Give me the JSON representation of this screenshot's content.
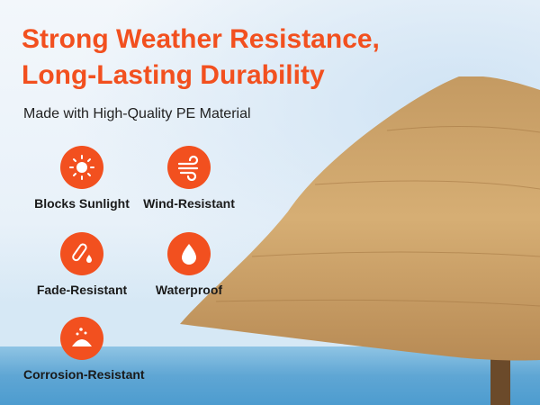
{
  "headline": {
    "line1": "Strong Weather Resistance,",
    "line2": "Long-Lasting Durability"
  },
  "subtitle": "Made with High-Quality PE Material",
  "accent_color": "#f2501f",
  "features": [
    {
      "label": "Blocks Sunlight",
      "icon": "sun-icon"
    },
    {
      "label": "Wind-Resistant",
      "icon": "wind-icon"
    },
    {
      "label": "Fade-Resistant",
      "icon": "test-tube-drop-icon"
    },
    {
      "label": "Waterproof",
      "icon": "water-drop-icon"
    },
    {
      "label": "Corrosion-Resistant",
      "icon": "sand-pile-icon"
    }
  ]
}
